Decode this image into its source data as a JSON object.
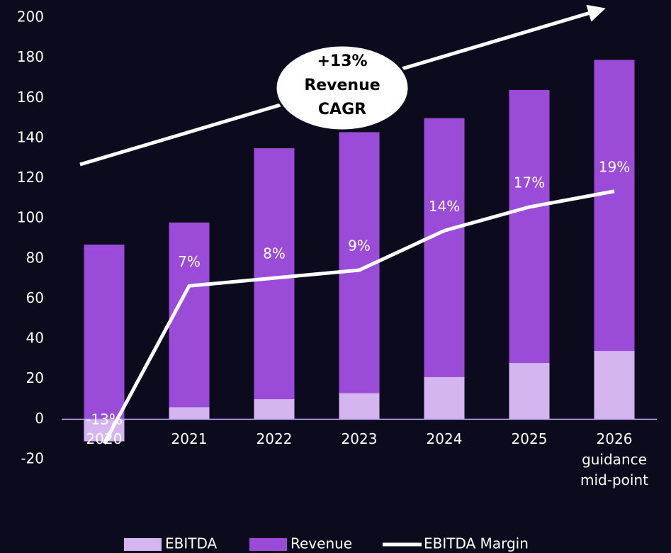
{
  "chart_data": {
    "type": "bar",
    "categories": [
      "2020",
      "2021",
      "2022",
      "2023",
      "2024",
      "2025",
      "2026 guidance mid-point"
    ],
    "series": [
      {
        "name": "EBITDA",
        "color": "#d4b5ef",
        "values": [
          -11,
          6,
          10,
          13,
          21,
          28,
          34
        ]
      },
      {
        "name": "Revenue",
        "color": "#9a4bd8",
        "values": [
          87,
          98,
          135,
          143,
          150,
          164,
          179
        ]
      },
      {
        "name": "EBITDA Margin",
        "color": "#ffffff",
        "type": "line",
        "axis": "y2",
        "values": [
          -13,
          7,
          8,
          9,
          14,
          17,
          19
        ],
        "value_labels": [
          "-13%",
          "7%",
          "8%",
          "9%",
          "14%",
          "17%",
          "19%"
        ]
      }
    ],
    "ylim": [
      -20,
      200
    ],
    "yticks": [
      -20,
      0,
      20,
      40,
      60,
      80,
      100,
      120,
      140,
      160,
      180,
      200
    ],
    "y2lim": [
      -15,
      41
    ],
    "annotation": [
      "+13%",
      "Revenue",
      "CAGR"
    ],
    "grid": false,
    "legend": "bottom"
  }
}
